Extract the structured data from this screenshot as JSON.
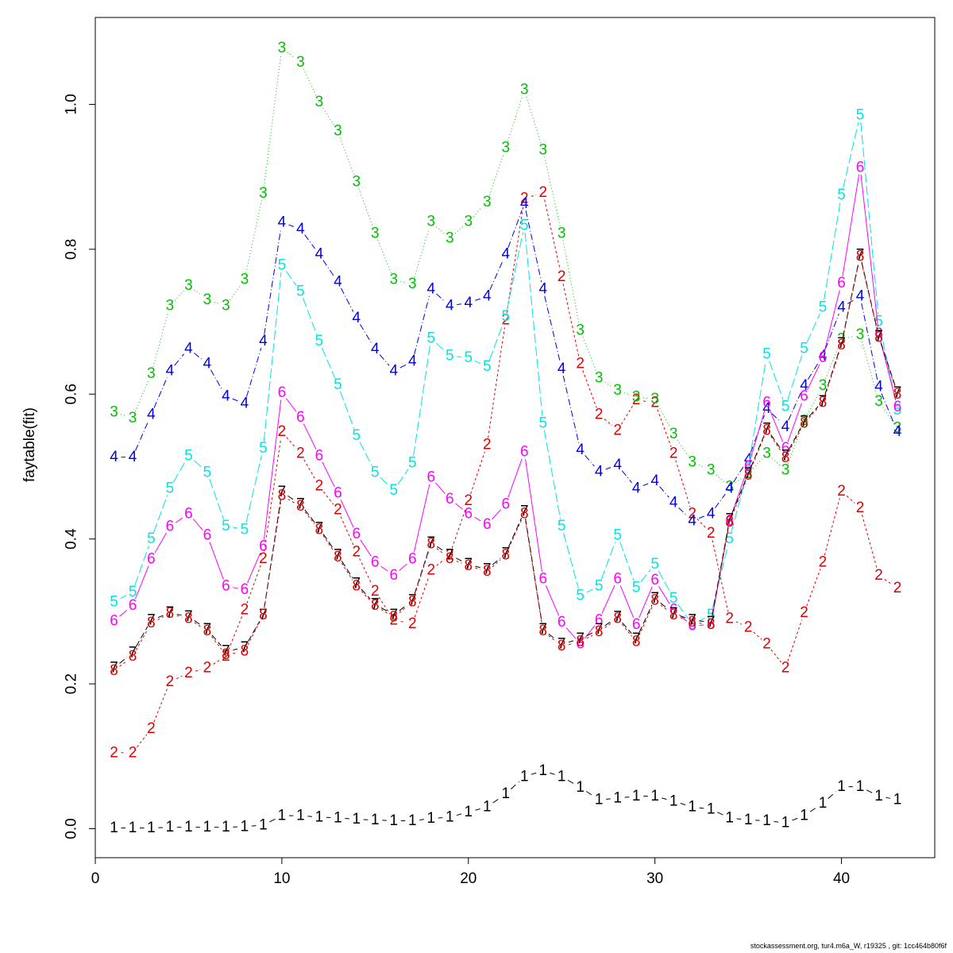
{
  "chart_data": {
    "type": "line",
    "title": "",
    "xlabel": "",
    "ylabel": "faytable(fit)",
    "xlim": [
      0,
      45
    ],
    "ylim": [
      -0.04,
      1.12
    ],
    "xticks": [
      0,
      10,
      20,
      30,
      40
    ],
    "yticks": [
      0.0,
      0.2,
      0.4,
      0.6,
      0.8,
      1.0
    ],
    "ytick_labels": [
      "0.0",
      "0.2",
      "0.4",
      "0.6",
      "0.8",
      "1.0"
    ],
    "grid": false,
    "legend": "none",
    "x": [
      1,
      2,
      3,
      4,
      5,
      6,
      7,
      8,
      9,
      10,
      11,
      12,
      13,
      14,
      15,
      16,
      17,
      18,
      19,
      20,
      21,
      22,
      23,
      24,
      25,
      26,
      27,
      28,
      29,
      30,
      31,
      32,
      33,
      34,
      35,
      36,
      37,
      38,
      39,
      40,
      41,
      42,
      43
    ],
    "series": [
      {
        "name": "1",
        "color": "#000000",
        "dash": "8,5",
        "values": [
          0.001,
          0.001,
          0.001,
          0.002,
          0.002,
          0.002,
          0.002,
          0.003,
          0.005,
          0.018,
          0.018,
          0.016,
          0.015,
          0.013,
          0.012,
          0.011,
          0.011,
          0.014,
          0.016,
          0.023,
          0.03,
          0.048,
          0.072,
          0.08,
          0.072,
          0.057,
          0.04,
          0.042,
          0.045,
          0.045,
          0.038,
          0.03,
          0.027,
          0.015,
          0.012,
          0.011,
          0.008,
          0.018,
          0.035,
          0.058,
          0.058,
          0.045,
          0.04
        ]
      },
      {
        "name": "2",
        "color": "#e00000",
        "dash": "3,3",
        "values": [
          0.105,
          0.105,
          0.138,
          0.203,
          0.215,
          0.222,
          0.238,
          0.302,
          0.373,
          0.548,
          0.518,
          0.473,
          0.44,
          0.382,
          0.328,
          0.288,
          0.283,
          0.357,
          0.378,
          0.453,
          0.53,
          0.702,
          0.87,
          0.878,
          0.762,
          0.642,
          0.572,
          0.55,
          0.592,
          0.588,
          0.518,
          0.435,
          0.408,
          0.29,
          0.278,
          0.255,
          0.222,
          0.298,
          0.368,
          0.466,
          0.443,
          0.35,
          0.332
        ]
      },
      {
        "name": "3",
        "color": "#00c000",
        "dash": "1,3",
        "values": [
          0.575,
          0.567,
          0.628,
          0.722,
          0.75,
          0.73,
          0.722,
          0.758,
          0.877,
          1.078,
          1.058,
          1.003,
          0.963,
          0.893,
          0.822,
          0.758,
          0.752,
          0.838,
          0.815,
          0.838,
          0.865,
          0.94,
          1.02,
          0.937,
          0.822,
          0.688,
          0.622,
          0.605,
          0.596,
          0.593,
          0.545,
          0.506,
          0.495,
          0.472,
          0.49,
          0.518,
          0.495,
          0.563,
          0.612,
          0.676,
          0.682,
          0.59,
          0.553
        ]
      },
      {
        "name": "4",
        "color": "#0000e0",
        "dash": "8,3,1,3",
        "values": [
          0.513,
          0.513,
          0.572,
          0.632,
          0.663,
          0.642,
          0.597,
          0.587,
          0.673,
          0.837,
          0.828,
          0.793,
          0.755,
          0.705,
          0.662,
          0.632,
          0.645,
          0.745,
          0.722,
          0.726,
          0.735,
          0.793,
          0.863,
          0.745,
          0.635,
          0.523,
          0.493,
          0.502,
          0.47,
          0.48,
          0.45,
          0.425,
          0.435,
          0.47,
          0.51,
          0.58,
          0.555,
          0.612,
          0.653,
          0.72,
          0.735,
          0.61,
          0.548
        ]
      },
      {
        "name": "5",
        "color": "#00e5e5",
        "dash": "12,4",
        "values": [
          0.313,
          0.327,
          0.4,
          0.47,
          0.515,
          0.492,
          0.418,
          0.413,
          0.525,
          0.778,
          0.742,
          0.673,
          0.613,
          0.543,
          0.492,
          0.467,
          0.505,
          0.677,
          0.653,
          0.65,
          0.638,
          0.707,
          0.833,
          0.56,
          0.418,
          0.322,
          0.335,
          0.405,
          0.333,
          0.365,
          0.318,
          0.282,
          0.295,
          0.4,
          0.497,
          0.655,
          0.583,
          0.663,
          0.72,
          0.875,
          0.985,
          0.7,
          0.578
        ]
      },
      {
        "name": "6",
        "color": "#ff00ff",
        "dash": "",
        "values": [
          0.287,
          0.308,
          0.372,
          0.417,
          0.435,
          0.405,
          0.335,
          0.33,
          0.39,
          0.602,
          0.568,
          0.515,
          0.463,
          0.407,
          0.368,
          0.35,
          0.372,
          0.485,
          0.455,
          0.435,
          0.42,
          0.448,
          0.52,
          0.345,
          0.285,
          0.255,
          0.288,
          0.345,
          0.282,
          0.343,
          0.302,
          0.28,
          0.282,
          0.425,
          0.5,
          0.588,
          0.525,
          0.597,
          0.65,
          0.753,
          0.913,
          0.683,
          0.582
        ]
      },
      {
        "name": "7",
        "color": "#000000",
        "dash": "8,4",
        "values": [
          0.222,
          0.243,
          0.288,
          0.298,
          0.293,
          0.275,
          0.245,
          0.25,
          0.295,
          0.465,
          0.448,
          0.415,
          0.378,
          0.338,
          0.31,
          0.295,
          0.315,
          0.395,
          0.378,
          0.365,
          0.358,
          0.38,
          0.438,
          0.275,
          0.255,
          0.262,
          0.275,
          0.292,
          0.262,
          0.318,
          0.297,
          0.288,
          0.285,
          0.427,
          0.49,
          0.552,
          0.515,
          0.562,
          0.59,
          0.67,
          0.792,
          0.68,
          0.602
        ]
      },
      {
        "name": "8",
        "color": "#e00000",
        "dash": "3,3",
        "values": [
          0.218,
          0.238,
          0.284,
          0.297,
          0.29,
          0.273,
          0.24,
          0.245,
          0.295,
          0.46,
          0.445,
          0.413,
          0.375,
          0.335,
          0.308,
          0.292,
          0.313,
          0.393,
          0.373,
          0.363,
          0.355,
          0.378,
          0.435,
          0.273,
          0.252,
          0.258,
          0.272,
          0.29,
          0.258,
          0.315,
          0.295,
          0.285,
          0.282,
          0.423,
          0.488,
          0.55,
          0.512,
          0.56,
          0.588,
          0.668,
          0.79,
          0.678,
          0.6
        ]
      }
    ]
  },
  "footer": "stockassessment.org, tur4.m6a_W, r19325 , git: 1cc464b80f6f"
}
